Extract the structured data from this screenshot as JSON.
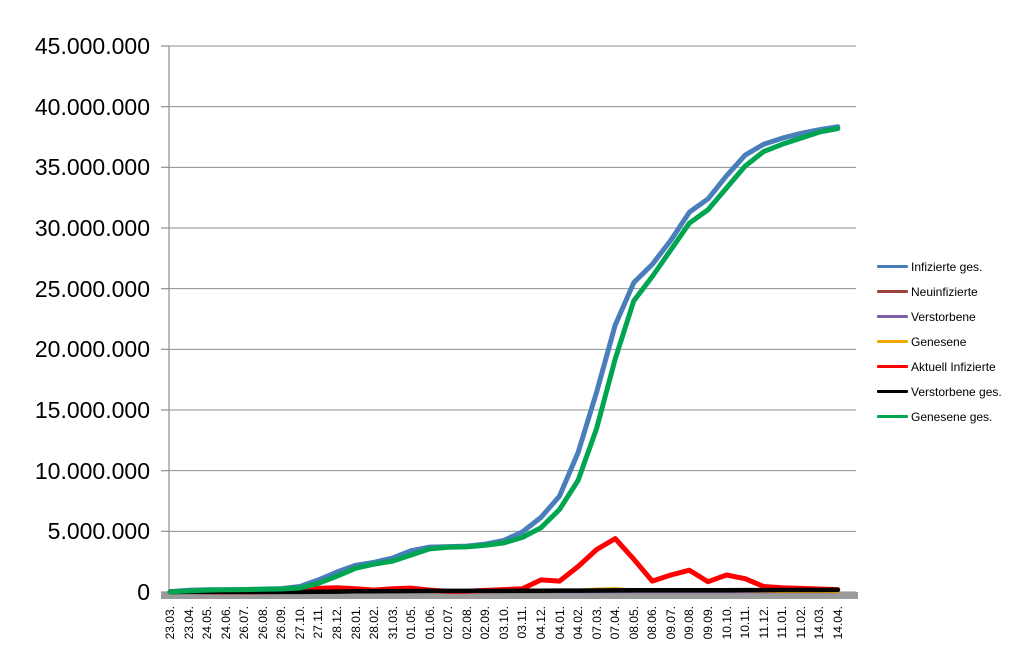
{
  "window": {
    "background": "#ffffff"
  },
  "chart_data": {
    "type": "line",
    "title": "",
    "grid": "horizontal",
    "gridline_color": "#8E8E8E",
    "x_axis_bar_color": "#9B9B9B",
    "text_color": "#000000",
    "y_axis": {
      "min": 0,
      "max": 45000000,
      "step": 5000000,
      "tick_labels": [
        "45.000.000",
        "40.000.000",
        "35.000.000",
        "30.000.000",
        "25.000.000",
        "20.000.000",
        "15.000.000",
        "10.000.000",
        "5.000.000",
        "0"
      ]
    },
    "x_axis": {
      "label_rotation_degrees": 90,
      "tick_labels": [
        "23.03.",
        "23.04.",
        "24.05.",
        "24.06.",
        "26.07.",
        "26.08.",
        "26.09.",
        "27.10.",
        "27.11.",
        "28.12.",
        "28.01.",
        "28.02.",
        "31.03.",
        "01.05.",
        "01.06.",
        "02.07.",
        "02.08.",
        "02.09.",
        "03.10.",
        "03.11.",
        "04.12.",
        "04.01.",
        "04.02.",
        "07.03.",
        "07.04.",
        "08.05.",
        "08.06.",
        "09.07.",
        "09.08.",
        "09.09.",
        "10.10.",
        "10.11.",
        "11.12.",
        "11.01.",
        "11.02.",
        "14.03.",
        "14.04."
      ]
    },
    "values_unit": "millions of persons",
    "legend": {
      "position": "right"
    },
    "series": [
      {
        "name": "Infizierte ges.",
        "color": "#4A7EBB",
        "line_width": 5,
        "values_millions": [
          0.03,
          0.15,
          0.18,
          0.19,
          0.21,
          0.24,
          0.28,
          0.45,
          1.0,
          1.65,
          2.2,
          2.45,
          2.8,
          3.4,
          3.7,
          3.74,
          3.78,
          3.95,
          4.25,
          4.95,
          6.15,
          7.9,
          11.5,
          16.5,
          22.0,
          25.5,
          27.0,
          29.0,
          31.3,
          32.4,
          34.3,
          36.0,
          36.9,
          37.4,
          37.8,
          38.1,
          38.35
        ]
      },
      {
        "name": "Neuinfizierte",
        "color": "#9E413A",
        "line_width": 2.5,
        "values_millions": [
          0.005,
          0.002,
          0.001,
          0.001,
          0.001,
          0.002,
          0.002,
          0.015,
          0.02,
          0.025,
          0.012,
          0.008,
          0.02,
          0.025,
          0.008,
          0.001,
          0.002,
          0.01,
          0.012,
          0.03,
          0.07,
          0.06,
          0.19,
          0.21,
          0.27,
          0.1,
          0.07,
          0.12,
          0.08,
          0.05,
          0.11,
          0.05,
          0.04,
          0.02,
          0.02,
          0.02,
          0.01
        ]
      },
      {
        "name": "Verstorbene",
        "color": "#7E5FA4",
        "line_width": 2.5,
        "values_millions": [
          0.0002,
          0.0003,
          0.0001,
          0.0001,
          0.0001,
          0.0001,
          0.0001,
          0.0002,
          0.0004,
          0.001,
          0.0008,
          0.0004,
          0.0002,
          0.0002,
          0.0001,
          0.0001,
          0.0001,
          0.0001,
          0.0001,
          0.0002,
          0.0004,
          0.0003,
          0.0002,
          0.0003,
          0.0003,
          0.0002,
          0.0001,
          0.0001,
          0.0002,
          0.0001,
          0.0002,
          0.0002,
          0.0002,
          0.0002,
          0.0001,
          0.0001,
          0.0001
        ]
      },
      {
        "name": "Genesene",
        "color": "#F0A800",
        "line_width": 2.5,
        "values_millions": [
          0.002,
          0.003,
          0.002,
          0.001,
          0.001,
          0.002,
          0.002,
          0.01,
          0.02,
          0.025,
          0.015,
          0.008,
          0.015,
          0.02,
          0.01,
          0.003,
          0.002,
          0.008,
          0.01,
          0.015,
          0.04,
          0.05,
          0.15,
          0.27,
          0.3,
          0.2,
          0.08,
          0.1,
          0.09,
          0.06,
          0.09,
          0.07,
          0.04,
          0.025,
          0.02,
          0.015,
          0.01
        ]
      },
      {
        "name": "Aktuell Infizierte",
        "color": "#FE0000",
        "line_width": 5,
        "values_millions": [
          0.02,
          0.05,
          0.015,
          0.007,
          0.01,
          0.02,
          0.035,
          0.1,
          0.3,
          0.35,
          0.26,
          0.16,
          0.26,
          0.32,
          0.16,
          0.05,
          0.06,
          0.13,
          0.2,
          0.27,
          1.0,
          0.9,
          2.1,
          3.5,
          4.4,
          2.7,
          0.9,
          1.4,
          1.8,
          0.85,
          1.4,
          1.1,
          0.45,
          0.35,
          0.3,
          0.25,
          0.2
        ]
      },
      {
        "name": "Verstorbene ges.",
        "color": "#000000",
        "line_width": 4.5,
        "values_millions": [
          0.001,
          0.005,
          0.008,
          0.009,
          0.009,
          0.009,
          0.01,
          0.01,
          0.015,
          0.03,
          0.055,
          0.07,
          0.076,
          0.083,
          0.088,
          0.091,
          0.092,
          0.092,
          0.094,
          0.096,
          0.101,
          0.112,
          0.118,
          0.124,
          0.131,
          0.136,
          0.139,
          0.142,
          0.144,
          0.147,
          0.15,
          0.154,
          0.158,
          0.162,
          0.165,
          0.168,
          0.17
        ]
      },
      {
        "name": "Genesene ges.",
        "color": "#00A551",
        "line_width": 5,
        "values_millions": [
          0.01,
          0.09,
          0.16,
          0.18,
          0.2,
          0.22,
          0.25,
          0.33,
          0.72,
          1.3,
          1.95,
          2.3,
          2.55,
          3.05,
          3.55,
          3.68,
          3.72,
          3.85,
          4.05,
          4.5,
          5.3,
          6.8,
          9.2,
          13.5,
          19.2,
          24.0,
          26.0,
          28.2,
          30.4,
          31.5,
          33.3,
          35.1,
          36.3,
          36.9,
          37.4,
          37.9,
          38.2
        ]
      }
    ]
  }
}
